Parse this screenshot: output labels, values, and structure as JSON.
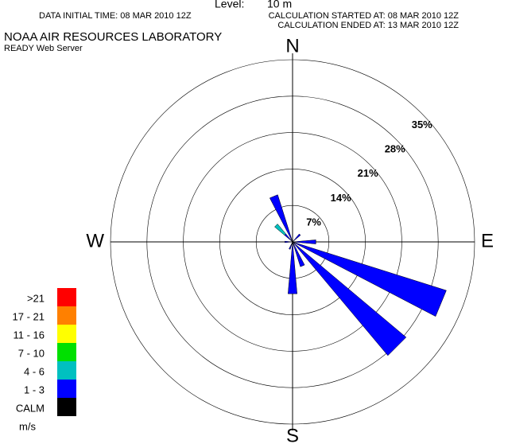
{
  "chart_data": {
    "type": "windrose",
    "header": {
      "level_label": "Level:",
      "level_value": "10 m",
      "data_time": "DATA INITIAL TIME: 08 MAR 2010 12Z",
      "calc_started": "CALCULATION STARTED AT: 08 MAR 2010 12Z",
      "calc_ended": "CALCULATION ENDED AT: 13 MAR 2010 12Z",
      "org": "NOAA AIR RESOURCES LABORATORY",
      "server": "READY Web Server"
    },
    "compass_labels": [
      "N",
      "E",
      "S",
      "W"
    ],
    "categories": [
      null,
      null,
      null,
      null,
      null,
      null,
      null,
      null,
      null,
      null,
      null,
      null,
      null,
      null,
      null,
      null
    ],
    "rlim": [
      0,
      35
    ],
    "rticks": [
      {
        "value": 7,
        "label": "7%"
      },
      {
        "value": 14,
        "label": "14%"
      },
      {
        "value": 21,
        "label": "21%"
      },
      {
        "value": 28,
        "label": "28%"
      },
      {
        "value": 35,
        "label": "35%"
      }
    ],
    "legend_unit": "m/s",
    "series": [
      {
        "name": ">21",
        "color": "#ff0000",
        "values": [
          0,
          0,
          0,
          0,
          0,
          0,
          0,
          0,
          0,
          0,
          0,
          0,
          0,
          0,
          0,
          0
        ]
      },
      {
        "name": "17 - 21",
        "color": "#ff8000",
        "values": [
          0,
          0,
          0,
          0,
          0,
          0,
          0,
          0,
          0,
          0,
          0,
          0,
          0,
          0,
          0,
          0
        ]
      },
      {
        "name": "11 - 16",
        "color": "#ffff00",
        "values": [
          0,
          0,
          0,
          0,
          0,
          0,
          0,
          0,
          0,
          0,
          0,
          0,
          0,
          0,
          0,
          0
        ]
      },
      {
        "name": "7 - 10",
        "color": "#00e000",
        "values": [
          0,
          0,
          0,
          0,
          0,
          0,
          0,
          0,
          0,
          0,
          0,
          0,
          0,
          0,
          0,
          0
        ]
      },
      {
        "name": "4 - 6",
        "color": "#00c0c0",
        "values": [
          0,
          0,
          0,
          0,
          0,
          0,
          0,
          0,
          0,
          0,
          0,
          0,
          0,
          0,
          2.5,
          0
        ]
      },
      {
        "name": "1 - 3",
        "color": "#0000ff",
        "values": [
          0,
          0,
          2,
          0,
          4.5,
          31,
          28.5,
          5,
          10,
          1.5,
          0,
          0,
          1.5,
          0,
          2,
          9.5
        ]
      },
      {
        "name": "CALM",
        "color": "#000000",
        "values": [
          0,
          0,
          0,
          0,
          0,
          0,
          0,
          0,
          0,
          0,
          0,
          0,
          0,
          0,
          0,
          0
        ]
      }
    ]
  }
}
